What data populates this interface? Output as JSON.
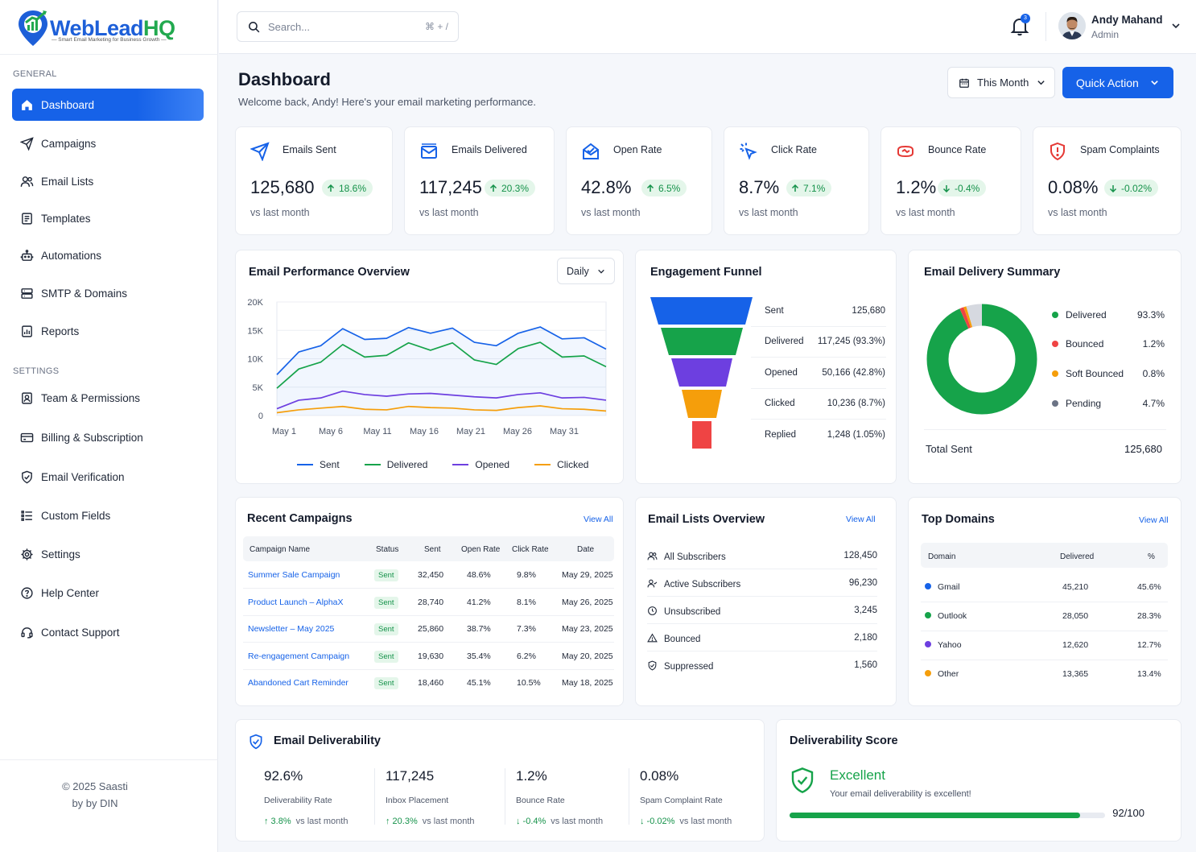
{
  "brand": {
    "name_part1": "WebLead",
    "name_part2": "HQ",
    "tagline": "— Smart Email Marketing for Business Growth —"
  },
  "sidebar": {
    "general_label": "GENERAL",
    "settings_label": "SETTINGS",
    "items": [
      {
        "label": "Dashboard",
        "icon": "home-icon"
      },
      {
        "label": "Campaigns",
        "icon": "send-icon"
      },
      {
        "label": "Email Lists",
        "icon": "users-icon"
      },
      {
        "label": "Templates",
        "icon": "template-icon"
      },
      {
        "label": "Automations",
        "icon": "robot-icon"
      },
      {
        "label": "SMTP & Domains",
        "icon": "server-icon"
      },
      {
        "label": "Reports",
        "icon": "report-icon"
      }
    ],
    "settings_items": [
      {
        "label": "Team & Permissions",
        "icon": "id-badge-icon"
      },
      {
        "label": "Billing & Subscription",
        "icon": "credit-card-icon"
      },
      {
        "label": "Email Verification",
        "icon": "shield-check-icon"
      },
      {
        "label": "Custom Fields",
        "icon": "list-icon"
      },
      {
        "label": "Settings",
        "icon": "gear-icon"
      },
      {
        "label": "Help Center",
        "icon": "help-icon"
      },
      {
        "label": "Contact Support",
        "icon": "headset-icon"
      }
    ],
    "footer_line1": "© 2025 Saasti",
    "footer_line2": "by by DIN"
  },
  "topbar": {
    "search_placeholder": "Search...",
    "search_shortcut": "⌘ + /",
    "notification_count": "3",
    "user_name": "Andy Mahand",
    "user_role": "Admin"
  },
  "header": {
    "title": "Dashboard",
    "subtitle": "Welcome back, Andy! Here's your email marketing performance.",
    "period_label": "This Month",
    "quick_action_label": "Quick Action"
  },
  "stats": [
    {
      "label": "Emails Sent",
      "value": "125,680",
      "change": "18.6%",
      "direction": "up",
      "compare": "vs last month",
      "icon": "paper-plane-icon",
      "color": "#1662e8"
    },
    {
      "label": "Emails Delivered",
      "value": "117,245",
      "change": "20.3%",
      "direction": "up",
      "compare": "vs last month",
      "icon": "envelope-icon",
      "color": "#1662e8"
    },
    {
      "label": "Open Rate",
      "value": "42.8%",
      "change": "6.5%",
      "direction": "up",
      "compare": "vs last month",
      "icon": "envelope-open-icon",
      "color": "#1662e8"
    },
    {
      "label": "Click Rate",
      "value": "8.7%",
      "change": "7.1%",
      "direction": "up",
      "compare": "vs last month",
      "icon": "cursor-click-icon",
      "color": "#1662e8"
    },
    {
      "label": "Bounce Rate",
      "value": "1.2%",
      "change": "-0.4%",
      "direction": "down",
      "compare": "vs last month",
      "icon": "bounce-icon",
      "color": "#e53935"
    },
    {
      "label": "Spam Complaints",
      "value": "0.08%",
      "change": "-0.02%",
      "direction": "down",
      "compare": "vs last month",
      "icon": "shield-alert-icon",
      "color": "#e53935"
    }
  ],
  "performance": {
    "title": "Email Performance Overview",
    "interval": "Daily",
    "chart_data": {
      "type": "line",
      "ylim": [
        0,
        20000
      ],
      "yticks": [
        {
          "v": 20000,
          "label": "20K"
        },
        {
          "v": 15000,
          "label": "15K"
        },
        {
          "v": 10000,
          "label": "10K"
        },
        {
          "v": 5000,
          "label": "5K"
        },
        {
          "v": 0,
          "label": "0"
        }
      ],
      "xtick_labels": [
        "May 1",
        "May 6",
        "May 11",
        "May 16",
        "May 21",
        "May 26",
        "May 31"
      ],
      "points": 16,
      "series": [
        {
          "name": "Sent",
          "color": "#1662e8",
          "values": [
            7200,
            11200,
            12300,
            15300,
            13400,
            13600,
            15500,
            14500,
            15400,
            12900,
            12300,
            14500,
            15600,
            13500,
            13700,
            11700
          ]
        },
        {
          "name": "Delivered",
          "color": "#16a34a",
          "values": [
            4800,
            8200,
            9400,
            12500,
            10300,
            10600,
            12800,
            11500,
            12800,
            9800,
            9000,
            11800,
            12900,
            10300,
            10500,
            8600
          ]
        },
        {
          "name": "Opened",
          "color": "#6d3fe0",
          "values": [
            1200,
            2700,
            3100,
            4300,
            3700,
            3400,
            3800,
            3900,
            3600,
            3300,
            3100,
            3700,
            4000,
            3100,
            3200,
            2700
          ]
        },
        {
          "name": "Clicked",
          "color": "#f59e0b",
          "values": [
            500,
            1000,
            1300,
            1600,
            1100,
            1000,
            1600,
            1400,
            1300,
            1000,
            900,
            1400,
            1700,
            1200,
            1100,
            800
          ]
        }
      ]
    }
  },
  "funnel": {
    "title": "Engagement Funnel",
    "stages": [
      {
        "label": "Sent",
        "value": "125,680",
        "color": "#1662e8"
      },
      {
        "label": "Delivered",
        "value": "117,245 (93.3%)",
        "color": "#16a34a"
      },
      {
        "label": "Opened",
        "value": "50,166 (42.8%)",
        "color": "#6d3fe0"
      },
      {
        "label": "Clicked",
        "value": "10,236 (8.7%)",
        "color": "#f59e0b"
      },
      {
        "label": "Replied",
        "value": "1,248 (1.05%)",
        "color": "#ef4444"
      }
    ]
  },
  "delivery_summary": {
    "title": "Email Delivery Summary",
    "chart_data": {
      "type": "pie",
      "slices": [
        {
          "label": "Delivered",
          "value": 93.3,
          "display": "93.3%",
          "color": "#16a34a"
        },
        {
          "label": "Bounced",
          "value": 1.2,
          "display": "1.2%",
          "color": "#ef4444"
        },
        {
          "label": "Soft Bounced",
          "value": 0.8,
          "display": "0.8%",
          "color": "#f59e0b"
        },
        {
          "label": "Pending",
          "value": 4.7,
          "display": "4.7%",
          "color": "#d6d9e0"
        }
      ]
    },
    "pending_dot_color": "#6b7385",
    "total_label": "Total Sent",
    "total_value": "125,680"
  },
  "recent_campaigns": {
    "title": "Recent Campaigns",
    "view_all": "View All",
    "columns": [
      "Campaign Name",
      "Status",
      "Sent",
      "Open Rate",
      "Click Rate",
      "Date"
    ],
    "rows": [
      {
        "name": "Summer Sale Campaign",
        "status": "Sent",
        "sent": "32,450",
        "open": "48.6%",
        "click": "9.8%",
        "date": "May 29, 2025"
      },
      {
        "name": "Product Launch – AlphaX",
        "status": "Sent",
        "sent": "28,740",
        "open": "41.2%",
        "click": "8.1%",
        "date": "May 26, 2025"
      },
      {
        "name": "Newsletter – May 2025",
        "status": "Sent",
        "sent": "25,860",
        "open": "38.7%",
        "click": "7.3%",
        "date": "May 23, 2025"
      },
      {
        "name": "Re-engagement Campaign",
        "status": "Sent",
        "sent": "19,630",
        "open": "35.4%",
        "click": "6.2%",
        "date": "May 20, 2025"
      },
      {
        "name": "Abandoned Cart Reminder",
        "status": "Sent",
        "sent": "18,460",
        "open": "45.1%",
        "click": "10.5%",
        "date": "May 18, 2025"
      }
    ]
  },
  "email_lists": {
    "title": "Email Lists Overview",
    "view_all": "View All",
    "rows": [
      {
        "label": "All Subscribers",
        "value": "128,450",
        "icon": "users-icon"
      },
      {
        "label": "Active Subscribers",
        "value": "96,230",
        "icon": "user-check-icon"
      },
      {
        "label": "Unsubscribed",
        "value": "3,245",
        "icon": "unsubscribe-icon"
      },
      {
        "label": "Bounced",
        "value": "2,180",
        "icon": "warning-icon"
      },
      {
        "label": "Suppressed",
        "value": "1,560",
        "icon": "shield-icon"
      }
    ]
  },
  "top_domains": {
    "title": "Top Domains",
    "view_all": "View All",
    "columns": [
      "Domain",
      "Delivered",
      "%"
    ],
    "rows": [
      {
        "domain": "Gmail",
        "delivered": "45,210",
        "pct": "45.6%",
        "color": "#1662e8"
      },
      {
        "domain": "Outlook",
        "delivered": "28,050",
        "pct": "28.3%",
        "color": "#16a34a"
      },
      {
        "domain": "Yahoo",
        "delivered": "12,620",
        "pct": "12.7%",
        "color": "#6d3fe0"
      },
      {
        "domain": "Other",
        "delivered": "13,365",
        "pct": "13.4%",
        "color": "#f59e0b"
      }
    ]
  },
  "deliverability": {
    "title": "Email Deliverability",
    "metrics": [
      {
        "value": "92.6%",
        "label": "Deliverability Rate",
        "change": "3.8%",
        "direction": "up",
        "compare": "vs last month"
      },
      {
        "value": "117,245",
        "label": "Inbox Placement",
        "change": "20.3%",
        "direction": "up",
        "compare": "vs last month"
      },
      {
        "value": "1.2%",
        "label": "Bounce Rate",
        "change": "-0.4%",
        "direction": "down",
        "compare": "vs last month"
      },
      {
        "value": "0.08%",
        "label": "Spam Complaint Rate",
        "change": "-0.02%",
        "direction": "down",
        "compare": "vs last month"
      }
    ]
  },
  "score": {
    "title": "Deliverability Score",
    "status": "Excellent",
    "message": "Your email deliverability is excellent!",
    "value": 92,
    "max": 100,
    "display": "92/100"
  }
}
